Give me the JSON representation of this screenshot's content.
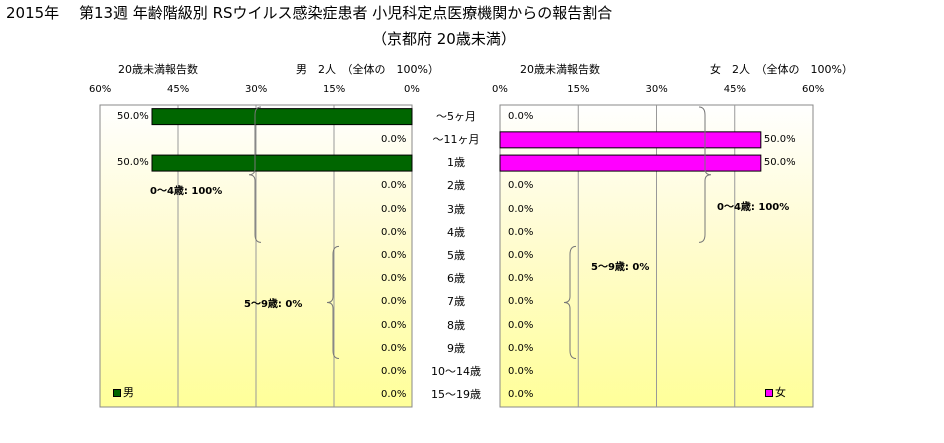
{
  "title": "2015年　 第13週 年齢階級別 RSウイルス感染症患者 小児科定点医療機関からの報告割合",
  "subtitle": "（京都府 20歳未満）",
  "left_panel": {
    "under20_label": "20歳未満報告数",
    "summary": "男　2人　（全体の　100%）",
    "ticks": [
      "60%",
      "45%",
      "30%",
      "15%",
      "0%"
    ],
    "legend": "男",
    "color": "#006600",
    "brace_labels": [
      "0～4歳: 100%",
      "5～9歳: 0%"
    ]
  },
  "right_panel": {
    "under20_label": "20歳未満報告数",
    "summary": "女　2人　（全体の　100%）",
    "ticks": [
      "0%",
      "15%",
      "30%",
      "45%",
      "60%"
    ],
    "legend": "女",
    "color": "#ff00ff",
    "brace_labels": [
      "0～4歳: 100%",
      "5～9歳: 0%"
    ]
  },
  "chart_data": {
    "type": "bar",
    "orientation": "horizontal-butterfly",
    "title": "2015年　 第13週 年齢階級別 RSウイルス感染症患者 小児科定点医療機関からの報告割合",
    "subtitle": "（京都府 20歳未満）",
    "xlim": [
      0,
      60
    ],
    "categories": [
      "～5ヶ月",
      "～11ヶ月",
      "1歳",
      "2歳",
      "3歳",
      "4歳",
      "5歳",
      "6歳",
      "7歳",
      "8歳",
      "9歳",
      "10～14歳",
      "15～19歳"
    ],
    "series": [
      {
        "name": "男",
        "values": [
          50.0,
          0.0,
          50.0,
          0.0,
          0.0,
          0.0,
          0.0,
          0.0,
          0.0,
          0.0,
          0.0,
          0.0,
          0.0
        ],
        "labels": [
          "50.0%",
          "0.0%",
          "50.0%",
          "0.0%",
          "0.0%",
          "0.0%",
          "0.0%",
          "0.0%",
          "0.0%",
          "0.0%",
          "0.0%",
          "0.0%",
          "0.0%"
        ]
      },
      {
        "name": "女",
        "values": [
          0.0,
          50.0,
          50.0,
          0.0,
          0.0,
          0.0,
          0.0,
          0.0,
          0.0,
          0.0,
          0.0,
          0.0,
          0.0
        ],
        "labels": [
          "0.0%",
          "50.0%",
          "50.0%",
          "0.0%",
          "0.0%",
          "0.0%",
          "0.0%",
          "0.0%",
          "0.0%",
          "0.0%",
          "0.0%",
          "0.0%",
          "0.0%"
        ]
      }
    ],
    "grid": true
  }
}
